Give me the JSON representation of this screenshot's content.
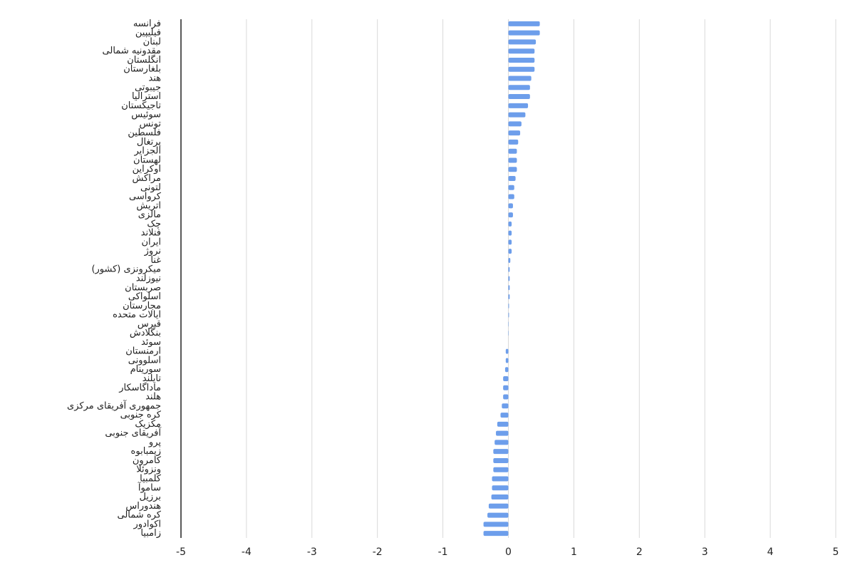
{
  "chart_data": {
    "type": "hbar",
    "categories": [
      "فرانسه",
      "فیلیپین",
      "لبنان",
      "مقدونیه شمالی",
      "انگلستان",
      "بلغارستان",
      "هند",
      "جیبوتی",
      "استرالیا",
      "تاجیکستان",
      "سوئیس",
      "تونس",
      "فلسطین",
      "پرتغال",
      "الجزایر",
      "لهستان",
      "اوکراین",
      "مراکش",
      "لتونی",
      "کرواسی",
      "اتریش",
      "مالزی",
      "چک",
      "فنلاند",
      "ایران",
      "نروژ",
      "غنا",
      "میکرونزی (کشور)",
      "نیوزلند",
      "صربستان",
      "اسلواکی",
      "مجارستان",
      "ایالات متحده",
      "قبرس",
      "بنگلادش",
      "سوئد",
      "ارمنستان",
      "اسلوونی",
      "سورینام",
      "تایلند",
      "ماداگاسکار",
      "هلند",
      "جمهوری آفریقای مرکزی",
      "کره جنوبی",
      "مکزیک",
      "آفریقای جنوبی",
      "پرو",
      "زیمبابوه",
      "کامرون",
      "ونزوئلا",
      "کلمبیا",
      "ساموآ",
      "برزیل",
      "هندوراس",
      "کره شمالی",
      "اکوادور",
      "زامبیا"
    ],
    "values": [
      0.48,
      0.48,
      0.42,
      0.4,
      0.4,
      0.4,
      0.35,
      0.33,
      0.33,
      0.3,
      0.26,
      0.2,
      0.18,
      0.15,
      0.13,
      0.13,
      0.13,
      0.11,
      0.09,
      0.09,
      0.07,
      0.07,
      0.05,
      0.05,
      0.05,
      0.05,
      0.03,
      0.02,
      0.02,
      0.02,
      0.02,
      0.01,
      0.01,
      0.005,
      0.005,
      0,
      -0.04,
      -0.04,
      -0.05,
      -0.08,
      -0.08,
      -0.08,
      -0.1,
      -0.12,
      -0.17,
      -0.19,
      -0.21,
      -0.23,
      -0.23,
      -0.23,
      -0.25,
      -0.25,
      -0.26,
      -0.3,
      -0.32,
      -0.38,
      -0.38
    ],
    "color": "#6d9eeb",
    "xlim": [
      -5,
      5
    ],
    "xticks": [
      -5,
      -4,
      -3,
      -2,
      -1,
      0,
      1,
      2,
      3,
      4,
      5
    ],
    "grid": true
  }
}
